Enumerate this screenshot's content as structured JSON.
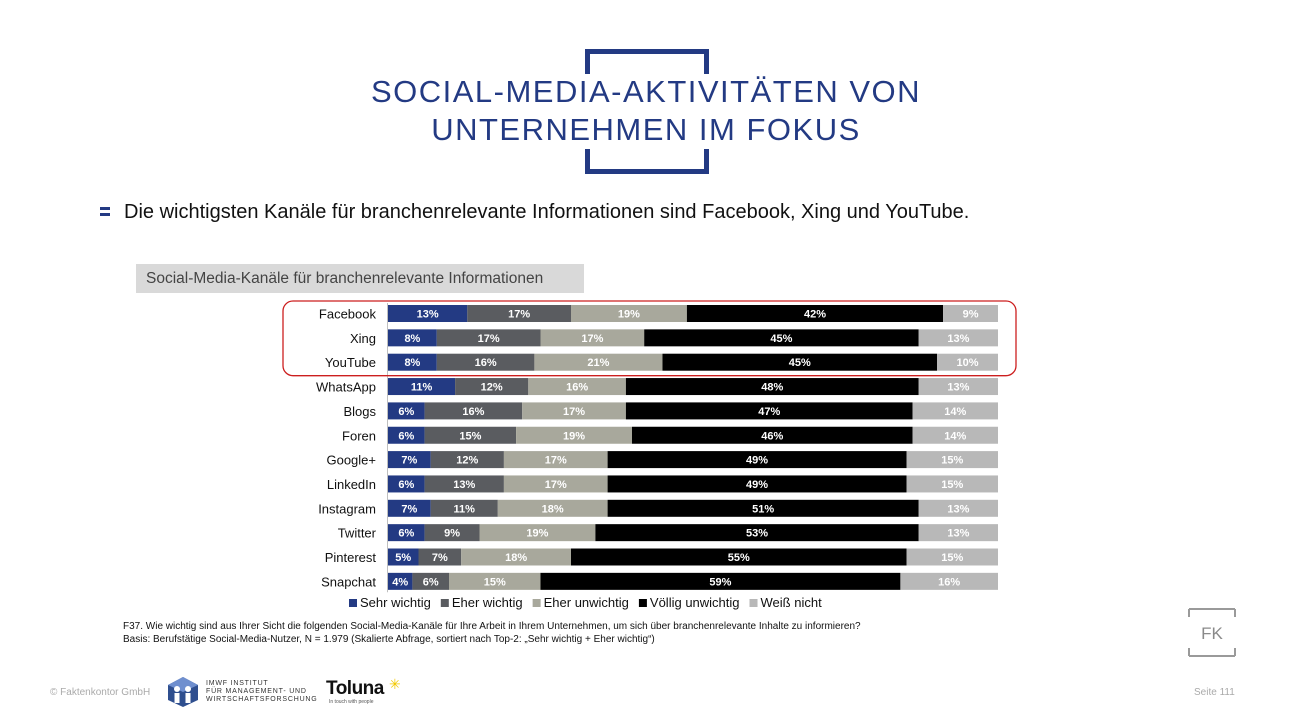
{
  "title": {
    "line1": "SOCIAL-MEDIA-AKTIVITÄTEN VON",
    "line2": "UNTERNEHMEN IM FOKUS"
  },
  "headline": "Die wichtigsten Kanäle für branchenrelevante Informationen sind Facebook, Xing und YouTube.",
  "chart_box_label": "Social-Media-Kanäle für branchenrelevante Informationen",
  "chart_data": {
    "type": "bar",
    "orientation": "horizontal",
    "stacked": "100%",
    "categories": [
      "Facebook",
      "Xing",
      "YouTube",
      "WhatsApp",
      "Blogs",
      "Foren",
      "Google+",
      "LinkedIn",
      "Instagram",
      "Twitter",
      "Pinterest",
      "Snapchat"
    ],
    "series": [
      {
        "name": "Sehr wichtig",
        "color": "#233a83",
        "label_color": "#ffffff",
        "values": [
          13,
          8,
          8,
          11,
          6,
          6,
          7,
          6,
          7,
          6,
          5,
          4
        ]
      },
      {
        "name": "Eher wichtig",
        "color": "#5a5c60",
        "label_color": "#ffffff",
        "values": [
          17,
          17,
          16,
          12,
          16,
          15,
          12,
          13,
          11,
          9,
          7,
          6
        ]
      },
      {
        "name": "Eher unwichtig",
        "color": "#a8a89c",
        "label_color": "#ffffff",
        "values": [
          19,
          17,
          21,
          16,
          17,
          19,
          17,
          17,
          18,
          19,
          18,
          15
        ]
      },
      {
        "name": "Völlig unwichtig",
        "color": "#000000",
        "label_color": "#ffffff",
        "values": [
          42,
          45,
          45,
          48,
          47,
          46,
          49,
          49,
          51,
          53,
          55,
          59
        ]
      },
      {
        "name": "Weiß nicht",
        "color": "#b8b8b8",
        "label_color": "#ffffff",
        "values": [
          9,
          13,
          10,
          13,
          14,
          14,
          15,
          15,
          13,
          13,
          15,
          16
        ]
      }
    ],
    "value_suffix": "%",
    "highlighted_categories": [
      "Facebook",
      "Xing",
      "YouTube"
    ],
    "highlight_color": "#cc1f1f",
    "legend_position": "bottom"
  },
  "footnotes": {
    "question": "F37. Wie wichtig sind aus Ihrer Sicht die folgenden Social-Media-Kanäle für Ihre Arbeit in Ihrem Unternehmen, um sich über branchenrelevante Inhalte zu informieren?",
    "basis": "Basis: Berufstätige Social-Media-Nutzer, N = 1.979 (Skalierte Abfrage, sortiert nach Top-2: „Sehr wichtig + Eher wichtig“)"
  },
  "footer": {
    "copyright": "© Faktenkontor GmbH",
    "imwf_line1": "IMWF INSTITUT",
    "imwf_line2": "FÜR MANAGEMENT- UND",
    "imwf_line3": "WIRTSCHAFTSFORSCHUNG",
    "toluna_name": "Toluna",
    "toluna_tagline": "In touch with people",
    "fk_logo": "FK",
    "page_number": "Seite 111"
  },
  "colors": {
    "brand_blue": "#233a83",
    "highlight_red": "#cc1f1f",
    "footer_gray": "#aaaaaa"
  }
}
